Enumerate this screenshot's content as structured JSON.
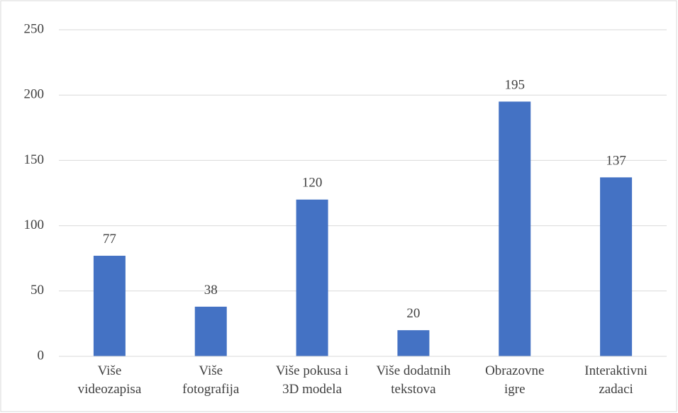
{
  "chart_data": {
    "type": "bar",
    "categories": [
      "Više videozapisa",
      "Više fotografija",
      "Više pokusa i 3D modela",
      "Više dodatnih tekstova",
      "Obrazovne igre",
      "Interaktivni zadaci"
    ],
    "values": [
      77,
      38,
      120,
      20,
      195,
      137
    ],
    "color": "#4472c4",
    "ylim": [
      0,
      250
    ],
    "yticks": [
      0,
      50,
      100,
      150,
      200,
      250
    ],
    "grid": true,
    "data_labels": true
  }
}
